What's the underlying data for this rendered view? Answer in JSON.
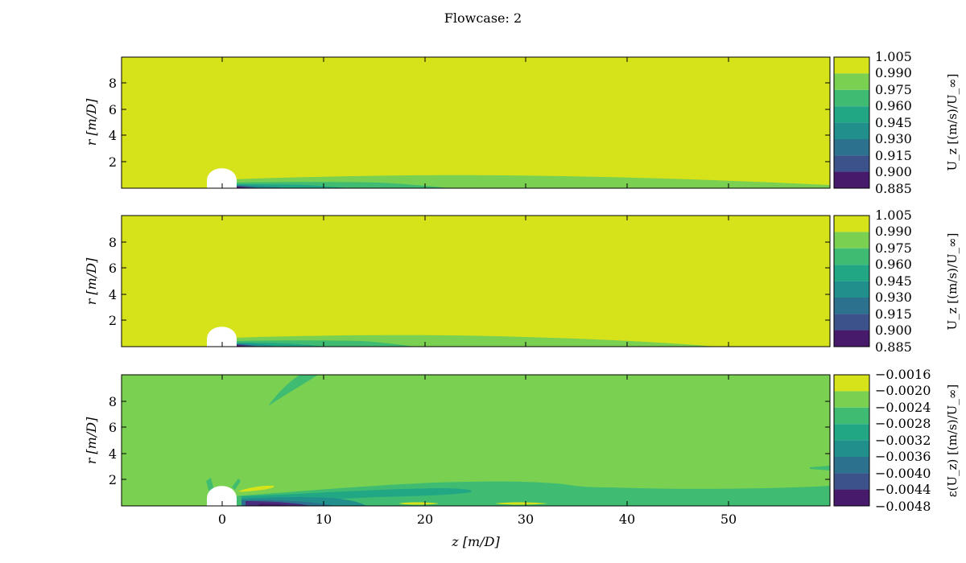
{
  "chart_data": {
    "type": "contour",
    "title": "Flowcase: 2",
    "xlabel": "z [m/D]",
    "xlim": [
      -10,
      60
    ],
    "xticks": [
      0,
      10,
      20,
      30,
      40,
      50
    ],
    "xtick_labels": [
      "0",
      "10",
      "20",
      "30",
      "40",
      "50"
    ],
    "panels": [
      {
        "id": "panel-1",
        "ylabel": "r [m/D]",
        "ylim": [
          0,
          10
        ],
        "yticks": [
          2,
          4,
          6,
          8
        ],
        "ytick_labels": [
          "2",
          "4",
          "6",
          "8"
        ],
        "colorbar_label": "U_z [(m/s)/U_∞]",
        "colorbar_ticks": [
          "1.005",
          "0.990",
          "0.975",
          "0.960",
          "0.945",
          "0.930",
          "0.915",
          "0.900",
          "0.885"
        ],
        "colors": [
          "#d6e21a",
          "#7ad151",
          "#3fbc72",
          "#22a785",
          "#21908d",
          "#2c728e",
          "#3b528b",
          "#472d7b",
          "#481a6c"
        ]
      },
      {
        "id": "panel-2",
        "ylabel": "r [m/D]",
        "ylim": [
          0,
          10
        ],
        "yticks": [
          2,
          4,
          6,
          8
        ],
        "ytick_labels": [
          "2",
          "4",
          "6",
          "8"
        ],
        "colorbar_label": "U_z [(m/s)/U_∞]",
        "colorbar_ticks": [
          "1.005",
          "0.990",
          "0.975",
          "0.960",
          "0.945",
          "0.930",
          "0.915",
          "0.900",
          "0.885"
        ],
        "colors": [
          "#d6e21a",
          "#7ad151",
          "#3fbc72",
          "#22a785",
          "#21908d",
          "#2c728e",
          "#3b528b",
          "#472d7b",
          "#481a6c"
        ]
      },
      {
        "id": "panel-3",
        "ylabel": "r [m/D]",
        "ylim": [
          0,
          10
        ],
        "yticks": [
          2,
          4,
          6,
          8
        ],
        "ytick_labels": [
          "2",
          "4",
          "6",
          "8"
        ],
        "colorbar_label": "ε(U_z) [(m/s)/U_∞]",
        "colorbar_ticks": [
          "−0.0016",
          "−0.0020",
          "−0.0024",
          "−0.0028",
          "−0.0032",
          "−0.0036",
          "−0.0040",
          "−0.0044",
          "−0.0048"
        ],
        "colors": [
          "#d6e21a",
          "#7ad151",
          "#3fbc72",
          "#22a785",
          "#21908d",
          "#2c728e",
          "#3b528b",
          "#472d7b",
          "#481a6c"
        ]
      }
    ]
  }
}
